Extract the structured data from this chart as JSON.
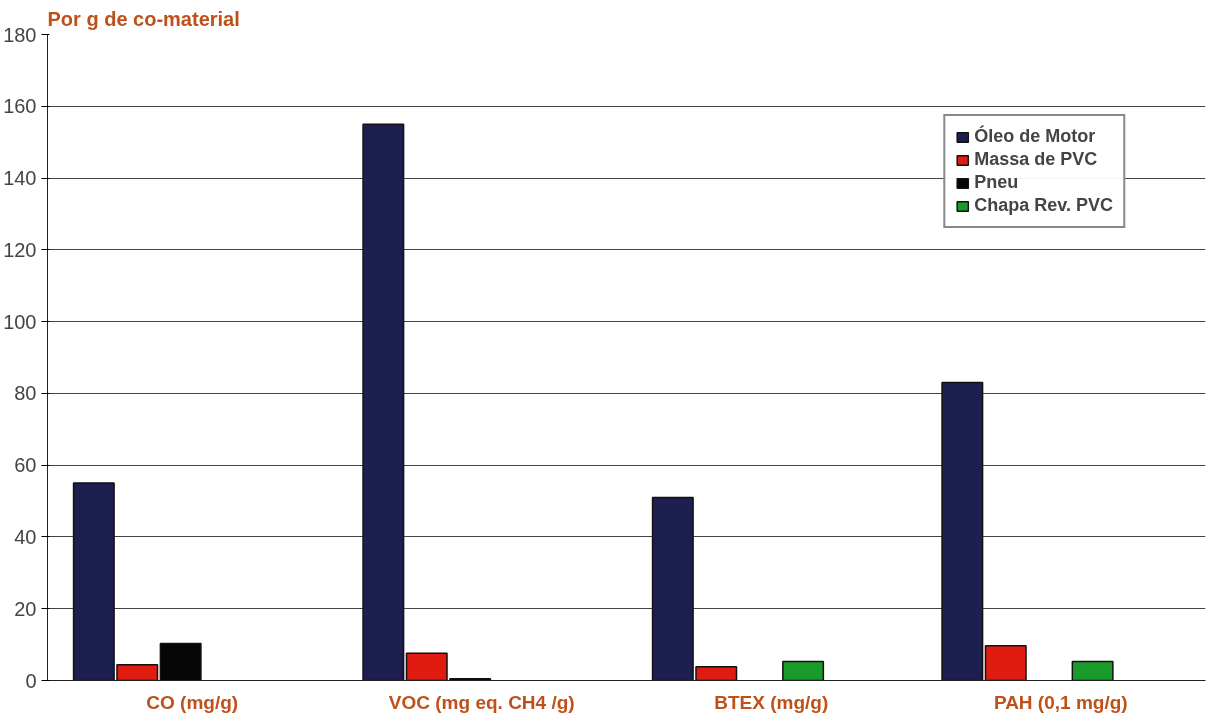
{
  "chart_data": {
    "type": "bar",
    "title": "Por g de co-material",
    "categories": [
      "CO (mg/g)",
      "VOC (mg eq. CH4 /g)",
      "BTEX (mg/g)",
      "PAH (0,1 mg/g)"
    ],
    "series": [
      {
        "name": "Óleo de Motor",
        "color": "#1c1f4f",
        "values": [
          55,
          155,
          51,
          83
        ]
      },
      {
        "name": "Massa de PVC",
        "color": "#e01b10",
        "values": [
          4.4,
          7.6,
          3.8,
          9.7
        ]
      },
      {
        "name": "Pneu",
        "color": "#050505",
        "values": [
          10.3,
          0.5,
          null,
          null
        ]
      },
      {
        "name": "Chapa Rev. PVC",
        "color": "#1a9a2a",
        "values": [
          null,
          null,
          5.3,
          5.3
        ]
      }
    ],
    "ylim": [
      0,
      180
    ],
    "yticks": [
      0,
      20,
      40,
      60,
      80,
      100,
      120,
      140,
      160,
      180
    ],
    "grid": "y",
    "legend": "top right"
  }
}
